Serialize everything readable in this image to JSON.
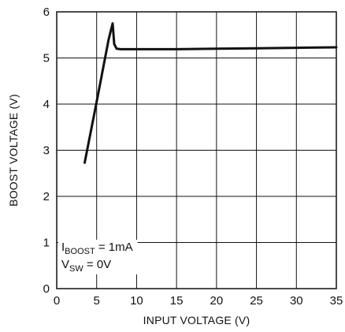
{
  "chart_data": {
    "type": "line",
    "xlabel": "INPUT VOLTAGE (V)",
    "ylabel": "BOOST VOLTAGE (V)",
    "xlim": [
      0,
      35
    ],
    "ylim": [
      0,
      6
    ],
    "xticks": [
      0,
      5,
      10,
      15,
      20,
      25,
      30,
      35
    ],
    "yticks": [
      0,
      1,
      2,
      3,
      4,
      5,
      6
    ],
    "grid": true,
    "series": [
      {
        "x": [
          3.5,
          5.0,
          6.5,
          7.0,
          7.2,
          7.5,
          8.0,
          10,
          15,
          20,
          25,
          30,
          35
        ],
        "y": [
          2.73,
          4.05,
          5.4,
          5.75,
          5.3,
          5.2,
          5.19,
          5.19,
          5.19,
          5.2,
          5.21,
          5.22,
          5.23
        ]
      }
    ],
    "annotations": [
      {
        "main": "I",
        "sub": "BOOST",
        "rest": " = 1mA"
      },
      {
        "main": "V",
        "sub": "SW",
        "rest": " = 0V"
      }
    ],
    "line_color": "#111111",
    "grid_color": "#111111"
  }
}
